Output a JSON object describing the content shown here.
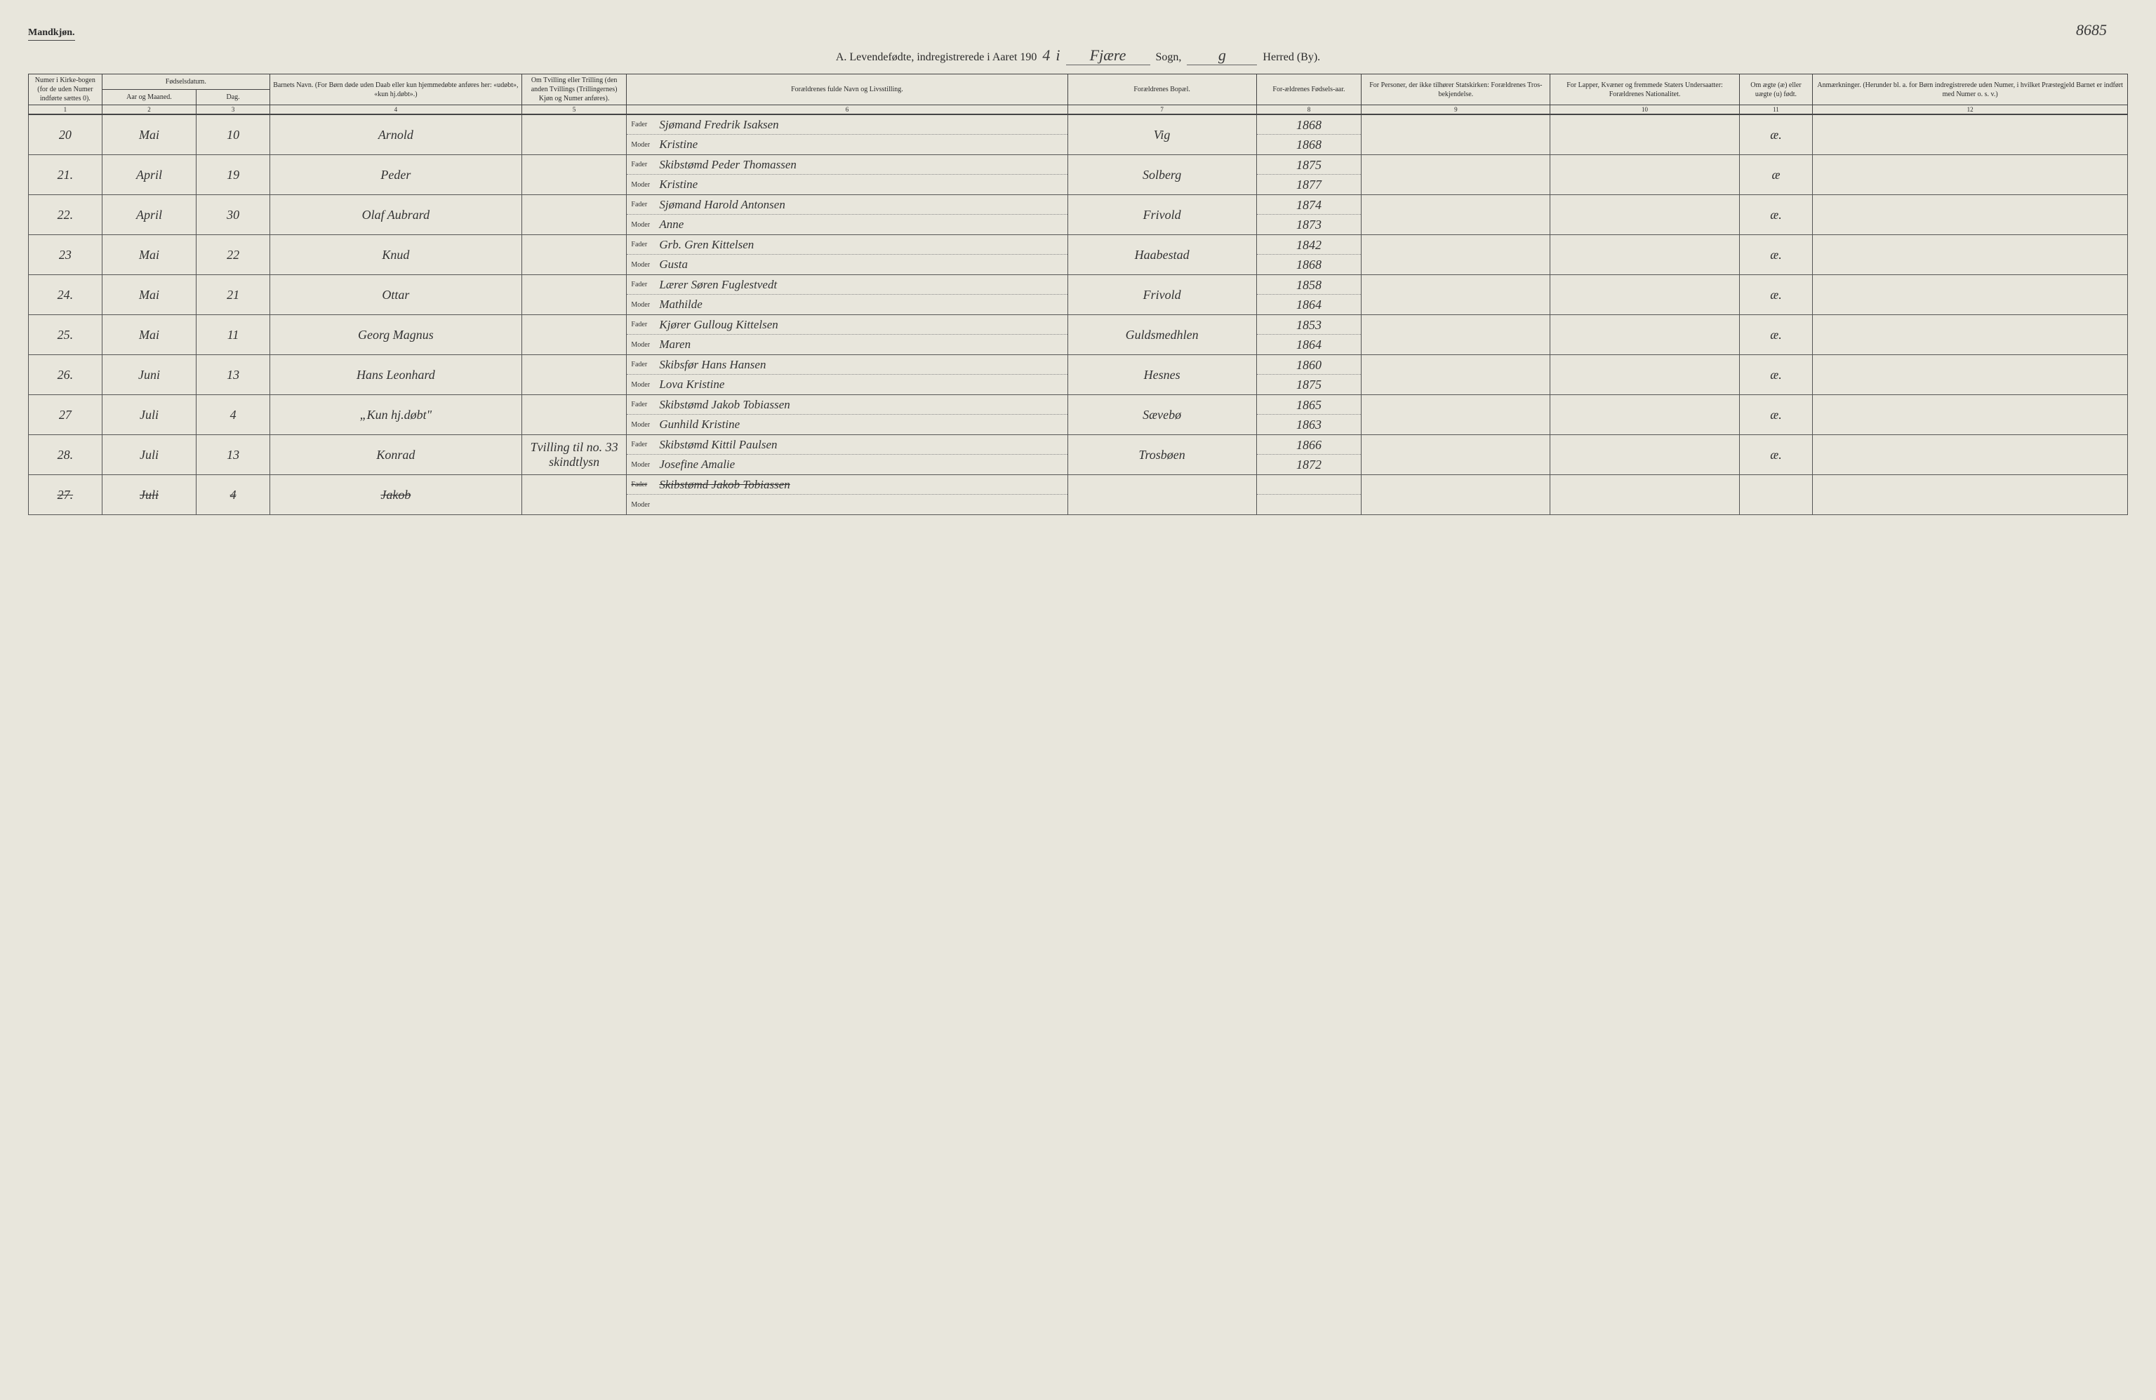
{
  "header": {
    "gender": "Mandkjøn.",
    "page_number": "8685",
    "title_prefix": "A.  Levendefødte, indregistrerede i Aaret 190",
    "year_suffix": "4",
    "i_word": "i",
    "parish": "Fjære",
    "sogn_label": "Sogn,",
    "herred_hand": "g",
    "herred_label": "Herred (By)."
  },
  "columns": {
    "c1": "Numer i Kirke-bogen (for de uden Numer indførte sættes 0).",
    "c2_group": "Fødselsdatum.",
    "c2a": "Aar og Maaned.",
    "c2b": "Dag.",
    "c4": "Barnets Navn.\n(For Børn døde uden Daab eller kun hjemmedøbte anføres her: «udøbt», «kun hj.døbt».)",
    "c5": "Om Tvilling eller Trilling (den anden Tvillings (Trillingernes) Kjøn og Numer anføres).",
    "c6": "Forældrenes fulde Navn og Livsstilling.",
    "c7": "Forældrenes Bopæl.",
    "c8": "For-ældrenes Fødsels-aar.",
    "c9": "For Personer, der ikke tilhører Statskirken: Forældrenes Tros-bekjendelse.",
    "c10": "For Lapper, Kvæner og fremmede Staters Undersaatter: Forældrenes Nationalitet.",
    "c11": "Om ægte (æ) eller uægte (u) født.",
    "c12": "Anmærkninger.\n(Herunder bl. a. for Børn indregistrerede uden Numer, i hvilket Præstegjeld Barnet er indført med Numer o. s. v.)"
  },
  "col_nums": [
    "1",
    "2",
    "3",
    "4",
    "5",
    "6",
    "7",
    "8",
    "9",
    "10",
    "11",
    "12"
  ],
  "parent_labels": {
    "father": "Fader",
    "mother": "Moder"
  },
  "rows": [
    {
      "num": "20",
      "month": "Mai",
      "day": "10",
      "name": "Arnold",
      "twin": "",
      "father": "Sjømand Fredrik Isaksen",
      "mother": "Kristine",
      "place": "Vig",
      "fy": "1868",
      "my": "1868",
      "rel": "",
      "nat": "",
      "leg": "æ.",
      "rem": ""
    },
    {
      "num": "21.",
      "month": "April",
      "day": "19",
      "name": "Peder",
      "twin": "",
      "father": "Skibstømd Peder Thomassen",
      "mother": "Kristine",
      "place": "Solberg",
      "fy": "1875",
      "my": "1877",
      "rel": "",
      "nat": "",
      "leg": "æ",
      "rem": ""
    },
    {
      "num": "22.",
      "month": "April",
      "day": "30",
      "name": "Olaf Aubrard",
      "twin": "",
      "father": "Sjømand Harold Antonsen",
      "mother": "Anne",
      "place": "Frivold",
      "fy": "1874",
      "my": "1873",
      "rel": "",
      "nat": "",
      "leg": "æ.",
      "rem": ""
    },
    {
      "num": "23",
      "month": "Mai",
      "day": "22",
      "name": "Knud",
      "twin": "",
      "father": "Grb. Gren Kittelsen",
      "mother": "Gusta",
      "place": "Haabestad",
      "fy": "1842",
      "my": "1868",
      "rel": "",
      "nat": "",
      "leg": "æ.",
      "rem": ""
    },
    {
      "num": "24.",
      "month": "Mai",
      "day": "21",
      "name": "Ottar",
      "twin": "",
      "father": "Lærer Søren Fuglestvedt",
      "mother": "Mathilde",
      "place": "Frivold",
      "fy": "1858",
      "my": "1864",
      "rel": "",
      "nat": "",
      "leg": "æ.",
      "rem": ""
    },
    {
      "num": "25.",
      "month": "Mai",
      "day": "11",
      "name": "Georg Magnus",
      "twin": "",
      "father": "Kjører Gulloug Kittelsen",
      "mother": "Maren",
      "place": "Guldsmedhlen",
      "fy": "1853",
      "my": "1864",
      "rel": "",
      "nat": "",
      "leg": "æ.",
      "rem": ""
    },
    {
      "num": "26.",
      "month": "Juni",
      "day": "13",
      "name": "Hans Leonhard",
      "twin": "",
      "father": "Skibsfør Hans Hansen",
      "mother": "Lova Kristine",
      "place": "Hesnes",
      "fy": "1860",
      "my": "1875",
      "rel": "",
      "nat": "",
      "leg": "æ.",
      "rem": ""
    },
    {
      "num": "27",
      "month": "Juli",
      "day": "4",
      "name": "„Kun hj.døbt\"",
      "twin": "",
      "father": "Skibstømd Jakob Tobiassen",
      "mother": "Gunhild Kristine",
      "place": "Sævebø",
      "fy": "1865",
      "my": "1863",
      "rel": "",
      "nat": "",
      "leg": "æ.",
      "rem": ""
    },
    {
      "num": "28.",
      "month": "Juli",
      "day": "13",
      "name": "Konrad",
      "twin": "Tvilling til no. 33 skindtlysn",
      "father": "Skibstømd Kittil Paulsen",
      "mother": "Josefine Amalie",
      "place": "Trosbøen",
      "fy": "1866",
      "my": "1872",
      "rel": "",
      "nat": "",
      "leg": "æ.",
      "rem": ""
    },
    {
      "num": "27.",
      "month": "Juli",
      "day": "4",
      "name": "Jakob",
      "twin": "",
      "father": "Skibstømd Jakob Tobiassen",
      "mother": "",
      "place": "",
      "fy": "",
      "my": "",
      "rel": "",
      "nat": "",
      "leg": "",
      "rem": "",
      "struck": true
    }
  ],
  "colors": {
    "bg": "#e8e6dc",
    "line": "#444444",
    "text": "#2a2a2a",
    "hand": "#3a3a3a"
  },
  "fonts": {
    "print": "Georgia, Times New Roman, serif",
    "hand": "Brush Script MT, cursive",
    "header_size_pt": 10,
    "hand_size_pt": 18
  }
}
